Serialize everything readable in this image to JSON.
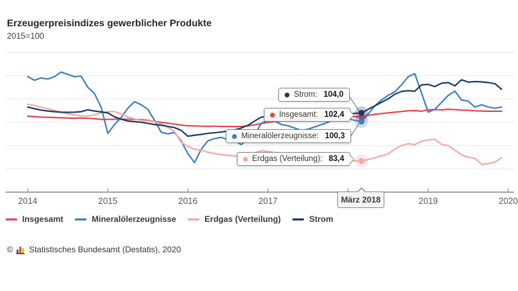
{
  "header": {
    "title": "Erzeugerpreisindizes gewerblicher Produkte",
    "subtitle": "2015=100"
  },
  "chart_data": {
    "type": "line",
    "title": "Erzeugerpreisindizes gewerblicher Produkte",
    "index_base": "2015=100",
    "x_unit": "month",
    "x_range": {
      "start": "Jan 2014",
      "end": "Dez 2019"
    },
    "x_tick_labels": [
      "2014",
      "2015",
      "2016",
      "2017",
      "2018",
      "2019",
      "2020"
    ],
    "x_tick_month_indices": [
      0,
      12,
      24,
      36,
      48,
      60,
      72
    ],
    "ylim": [
      70,
      130
    ],
    "grid_step": 10,
    "grid": true,
    "legend_position": "bottom",
    "colors": {
      "grid": "#ececec",
      "axis": "#8c8c8c",
      "tick_label": "#5a5a5a"
    },
    "series": [
      {
        "name": "Insgesamt",
        "color": "#e8444f",
        "values": [
          102.6,
          102.4,
          102.2,
          102.1,
          102.0,
          101.9,
          101.8,
          101.7,
          101.8,
          101.7,
          101.5,
          101.2,
          101.2,
          101.3,
          101.3,
          101.3,
          101.2,
          101.1,
          100.8,
          100.3,
          99.9,
          99.6,
          99.2,
          98.8,
          98.5,
          98.4,
          98.3,
          98.2,
          98.3,
          98.2,
          98.2,
          98.1,
          98.2,
          98.4,
          98.9,
          99.4,
          100.0,
          100.3,
          100.5,
          100.8,
          100.8,
          100.9,
          101.1,
          101.3,
          101.6,
          101.9,
          102.1,
          102.1,
          102.3,
          102.3,
          102.4,
          102.9,
          103.4,
          103.7,
          104.0,
          104.3,
          104.6,
          104.9,
          105.0,
          104.7,
          105.3,
          105.4,
          105.3,
          105.5,
          105.4,
          105.2,
          105.1,
          104.9,
          104.8,
          104.7,
          104.7,
          104.7
        ]
      },
      {
        "name": "Mineralölerzeugnisse",
        "color": "#3e7ec0",
        "values": [
          119.6,
          118.0,
          119.0,
          118.5,
          119.5,
          121.5,
          120.5,
          119.5,
          119.8,
          115.0,
          112.3,
          106.5,
          95.2,
          99.0,
          102.0,
          106.0,
          108.8,
          107.5,
          105.5,
          100.8,
          95.7,
          95.0,
          95.6,
          92.0,
          86.5,
          82.7,
          88.4,
          92.0,
          93.0,
          93.5,
          92.5,
          92.0,
          90.4,
          92.5,
          94.5,
          99.5,
          101.0,
          100.5,
          99.0,
          98.5,
          97.5,
          96.5,
          97.0,
          98.0,
          99.0,
          100.0,
          101.5,
          101.0,
          101.5,
          100.8,
          100.3,
          103.5,
          107.0,
          109.5,
          111.5,
          113.0,
          116.0,
          119.5,
          120.8,
          112.5,
          104.3,
          105.5,
          108.5,
          111.5,
          113.3,
          109.5,
          109.0,
          106.5,
          107.5,
          106.5,
          106.0,
          106.5
        ]
      },
      {
        "name": "Erdgas (Verteilung)",
        "color": "#f7a6a6",
        "values": [
          107.7,
          107.2,
          106.5,
          105.8,
          105.0,
          104.3,
          103.6,
          103.1,
          102.8,
          102.6,
          103.2,
          103.9,
          104.5,
          104.6,
          103.5,
          102.3,
          101.4,
          100.8,
          100.5,
          100.2,
          99.2,
          97.8,
          96.0,
          91.4,
          89.6,
          88.4,
          88.0,
          87.1,
          86.6,
          86.1,
          85.8,
          85.5,
          85.3,
          85.5,
          86.8,
          87.8,
          87.4,
          87.0,
          86.5,
          86.0,
          85.6,
          85.2,
          84.9,
          84.6,
          84.3,
          84.0,
          83.8,
          83.6,
          83.5,
          83.4,
          83.4,
          84.0,
          84.8,
          85.6,
          86.4,
          88.5,
          90.0,
          90.8,
          90.4,
          91.8,
          92.4,
          92.7,
          90.5,
          90.0,
          88.0,
          86.0,
          85.0,
          84.5,
          82.0,
          82.2,
          83.0,
          84.7
        ]
      },
      {
        "name": "Strom",
        "color": "#1a3a5f",
        "values": [
          106.5,
          105.8,
          105.2,
          104.8,
          104.5,
          104.3,
          104.2,
          104.3,
          104.5,
          105.3,
          104.8,
          104.4,
          104.0,
          102.3,
          101.3,
          100.5,
          100.2,
          100.0,
          99.5,
          99.0,
          98.7,
          98.2,
          97.7,
          96.5,
          94.0,
          94.4,
          94.8,
          95.2,
          95.5,
          95.8,
          96.2,
          96.7,
          97.5,
          98.7,
          100.5,
          102.2,
          102.3,
          102.0,
          101.8,
          101.5,
          101.3,
          101.2,
          101.4,
          101.8,
          102.2,
          102.6,
          103.0,
          103.4,
          103.6,
          103.8,
          104.0,
          105.5,
          107.0,
          108.5,
          110.0,
          112.0,
          113.2,
          113.5,
          113.3,
          116.0,
          116.2,
          115.3,
          116.7,
          117.0,
          115.6,
          118.2,
          117.2,
          117.4,
          117.3,
          117.0,
          116.5,
          114.1
        ]
      }
    ],
    "highlight": {
      "month_index": 50,
      "x_label": "März 2018",
      "points": [
        {
          "series_index": 3,
          "label": "Strom:",
          "value": "104,0",
          "value_num": 104.0
        },
        {
          "series_index": 0,
          "label": "Insgesamt:",
          "value": "102,4",
          "value_num": 102.4
        },
        {
          "series_index": 1,
          "label": "Mineralölerzeugnisse:",
          "value": "100,3",
          "value_num": 100.3
        },
        {
          "series_index": 2,
          "label": "Erdgas (Verteilung):",
          "value": "83,4",
          "value_num": 83.4
        }
      ]
    }
  },
  "legend": {
    "items": [
      "Insgesamt",
      "Mineralölerzeugnisse",
      "Erdgas (Verteilung)",
      "Strom"
    ]
  },
  "footer": {
    "copyright": "©",
    "logo": "destatis-bar-chart-logo",
    "source": "Statistisches Bundesamt (Destatis), 2020"
  }
}
